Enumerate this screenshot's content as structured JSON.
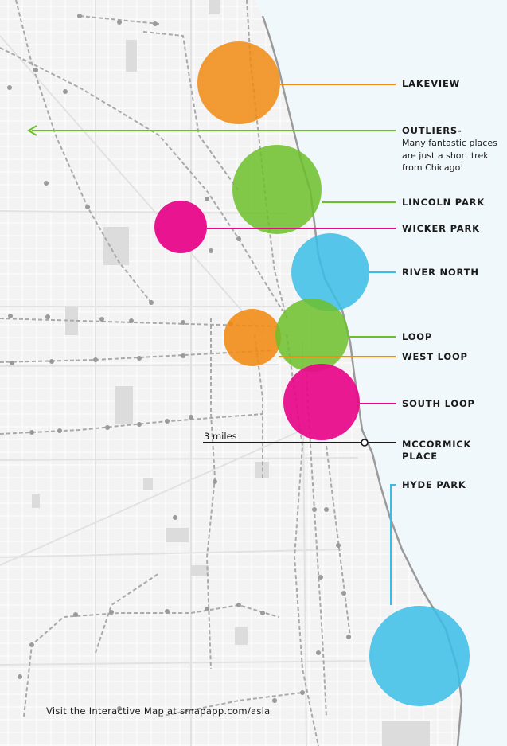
{
  "colors": {
    "lake": "#f1f8fc",
    "land": "#f4f4f4",
    "orange": "#f08a12",
    "green": "#6cbf2a",
    "magenta": "#e8078a",
    "blue": "#39bde6",
    "black_leader": "#1a1a1a"
  },
  "neighborhoods": [
    {
      "key": "lakeview",
      "label": "LAKEVIEW",
      "color": "orange"
    },
    {
      "key": "outliers",
      "label": "OUTLIERS-",
      "color": "green",
      "note": "Many fantastic places are just a short trek from Chicago!"
    },
    {
      "key": "lincoln_park",
      "label": "LINCOLN PARK",
      "color": "green"
    },
    {
      "key": "wicker_park",
      "label": "WICKER PARK",
      "color": "magenta"
    },
    {
      "key": "river_north",
      "label": "RIVER NORTH",
      "color": "blue"
    },
    {
      "key": "loop",
      "label": "LOOP",
      "color": "green"
    },
    {
      "key": "west_loop",
      "label": "WEST LOOP",
      "color": "orange"
    },
    {
      "key": "south_loop",
      "label": "SOUTH LOOP",
      "color": "magenta"
    },
    {
      "key": "mccormick",
      "label_line1": "MCCORMICK",
      "label_line2": "PLACE",
      "color": "black_leader"
    },
    {
      "key": "hyde_park",
      "label": "HYDE PARK",
      "color": "blue"
    }
  ],
  "scale_bar": {
    "label": "3 miles"
  },
  "footer": {
    "text": "Visit the Interactive Map at smapapp.com/asla"
  }
}
